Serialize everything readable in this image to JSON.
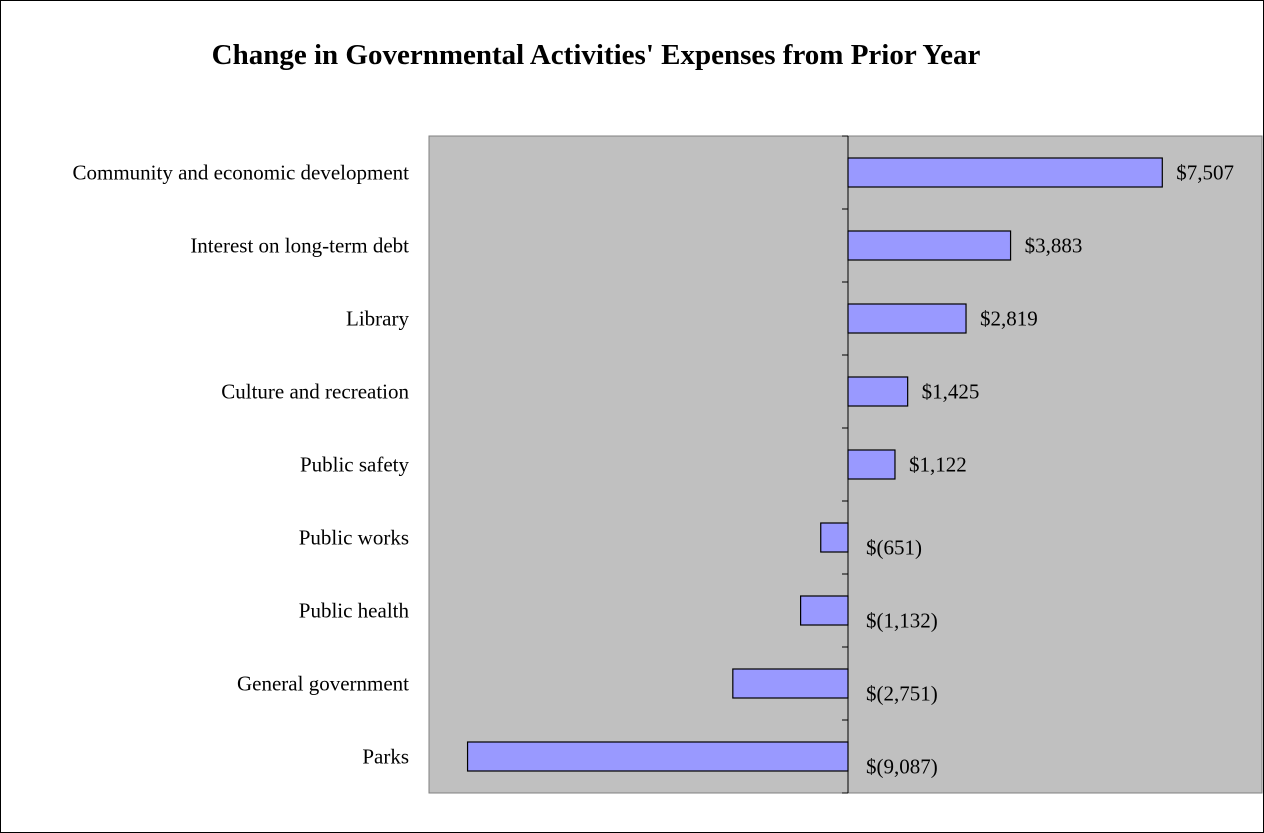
{
  "chart_data": {
    "type": "bar",
    "orientation": "horizontal",
    "title": "Change in Governmental Activities' Expenses from Prior Year",
    "xlabel": "",
    "ylabel": "",
    "categories": [
      "Community and economic development",
      "Interest on long-term debt",
      "Library",
      "Culture and recreation",
      "Public safety",
      "Public works",
      "Public health",
      "General government",
      "Parks"
    ],
    "values": [
      7507,
      3883,
      2819,
      1425,
      1122,
      -651,
      -1132,
      -2751,
      -9087
    ],
    "data_labels": [
      "$7,507",
      "$3,883",
      "$2,819",
      "$1,425",
      "$1,122",
      "$(651)",
      "$(1,132)",
      "$(2,751)",
      "$(9,087)"
    ],
    "xlim": [
      -10000,
      10000
    ],
    "grid": false,
    "legend": "none",
    "colors": {
      "bar_fill": "#9999ff",
      "bar_stroke": "#000000",
      "plot_background": "#c0c0c0",
      "plot_border": "#808080"
    }
  }
}
